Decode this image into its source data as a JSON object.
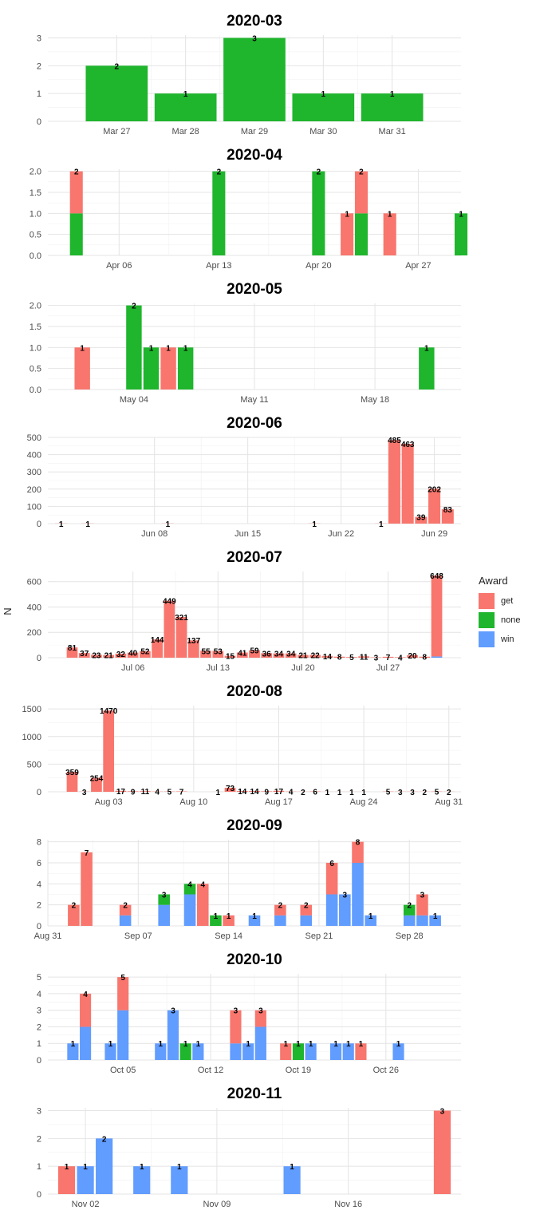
{
  "y_axis_label": "N",
  "legend": {
    "title": "Award",
    "items": [
      {
        "key": "get",
        "label": "get",
        "color": "#F8766D"
      },
      {
        "key": "none",
        "label": "none",
        "color": "#1FB52D"
      },
      {
        "key": "win",
        "label": "win",
        "color": "#619CFF"
      }
    ]
  },
  "chart_data": [
    {
      "type": "bar",
      "stacked": true,
      "title": "2020-03",
      "xlim": [
        "2020-03-26",
        "2020-04-01"
      ],
      "ylim": [
        0,
        3.1
      ],
      "yticks": [
        0,
        1,
        2,
        3
      ],
      "ytick_labels": [
        "0",
        "1",
        "2",
        "3"
      ],
      "xticks": [
        "2020-03-27",
        "2020-03-28",
        "2020-03-29",
        "2020-03-30",
        "2020-03-31"
      ],
      "xtick_labels": [
        "Mar 27",
        "Mar 28",
        "Mar 29",
        "Mar 30",
        "Mar 31"
      ],
      "bars": [
        {
          "date": "2020-03-27",
          "none": 2,
          "label": "2"
        },
        {
          "date": "2020-03-28",
          "none": 1,
          "label": "1"
        },
        {
          "date": "2020-03-29",
          "none": 3,
          "label": "3"
        },
        {
          "date": "2020-03-30",
          "none": 1,
          "label": "1"
        },
        {
          "date": "2020-03-31",
          "none": 1,
          "label": "1"
        }
      ]
    },
    {
      "type": "bar",
      "stacked": true,
      "title": "2020-04",
      "xlim": [
        "2020-04-01",
        "2020-04-30"
      ],
      "ylim": [
        0,
        2.05
      ],
      "yticks": [
        0,
        0.5,
        1,
        1.5,
        2
      ],
      "ytick_labels": [
        "0.0",
        "0.5",
        "1.0",
        "1.5",
        "2.0"
      ],
      "xticks": [
        "2020-04-06",
        "2020-04-13",
        "2020-04-20",
        "2020-04-27"
      ],
      "xtick_labels": [
        "Apr 06",
        "Apr 13",
        "Apr 20",
        "Apr 27"
      ],
      "bars": [
        {
          "date": "2020-04-03",
          "none": 1,
          "get": 1,
          "label": "2"
        },
        {
          "date": "2020-04-13",
          "none": 2,
          "label": "2"
        },
        {
          "date": "2020-04-20",
          "none": 2,
          "label": "2"
        },
        {
          "date": "2020-04-22",
          "get": 1,
          "label": "1"
        },
        {
          "date": "2020-04-23",
          "none": 1,
          "get": 1,
          "label": "2"
        },
        {
          "date": "2020-04-25",
          "get": 1,
          "label": "1"
        },
        {
          "date": "2020-04-30",
          "none": 1,
          "label": "1"
        }
      ]
    },
    {
      "type": "bar",
      "stacked": true,
      "title": "2020-05",
      "xlim": [
        "2020-04-29",
        "2020-05-23"
      ],
      "ylim": [
        0,
        2.05
      ],
      "yticks": [
        0,
        0.5,
        1,
        1.5,
        2
      ],
      "ytick_labels": [
        "0.0",
        "0.5",
        "1.0",
        "1.5",
        "2.0"
      ],
      "xticks": [
        "2020-05-04",
        "2020-05-11",
        "2020-05-18"
      ],
      "xtick_labels": [
        "May 04",
        "May 11",
        "May 18"
      ],
      "bars": [
        {
          "date": "2020-05-01",
          "get": 1,
          "label": "1"
        },
        {
          "date": "2020-05-04",
          "none": 2,
          "label": "2"
        },
        {
          "date": "2020-05-05",
          "none": 1,
          "label": "1"
        },
        {
          "date": "2020-05-06",
          "get": 1,
          "label": "1"
        },
        {
          "date": "2020-05-07",
          "none": 1,
          "label": "1"
        },
        {
          "date": "2020-05-21",
          "none": 1,
          "label": "1"
        }
      ]
    },
    {
      "type": "bar",
      "stacked": true,
      "title": "2020-06",
      "xlim": [
        "2020-05-31",
        "2020-07-01"
      ],
      "ylim": [
        0,
        500
      ],
      "yticks": [
        0,
        100,
        200,
        300,
        400,
        500
      ],
      "ytick_labels": [
        "0",
        "100",
        "200",
        "300",
        "400",
        "500"
      ],
      "xticks": [
        "2020-06-08",
        "2020-06-15",
        "2020-06-22",
        "2020-06-29"
      ],
      "xtick_labels": [
        "Jun 08",
        "Jun 15",
        "Jun 22",
        "Jun 29"
      ],
      "bars": [
        {
          "date": "2020-06-01",
          "get": 1,
          "label": "1"
        },
        {
          "date": "2020-06-03",
          "get": 1,
          "label": "1"
        },
        {
          "date": "2020-06-09",
          "get": 1,
          "label": "1"
        },
        {
          "date": "2020-06-20",
          "get": 1,
          "label": "1"
        },
        {
          "date": "2020-06-25",
          "get": 1,
          "label": "1"
        },
        {
          "date": "2020-06-26",
          "get": 485,
          "label": "485"
        },
        {
          "date": "2020-06-27",
          "get": 463,
          "label": "463"
        },
        {
          "date": "2020-06-28",
          "get": 39,
          "label": "39"
        },
        {
          "date": "2020-06-29",
          "get": 202,
          "label": "202"
        },
        {
          "date": "2020-06-30",
          "get": 83,
          "label": "83"
        }
      ]
    },
    {
      "type": "bar",
      "stacked": true,
      "title": "2020-07",
      "xlim": [
        "2020-06-29",
        "2020-08-02"
      ],
      "ylim": [
        0,
        680
      ],
      "yticks": [
        0,
        200,
        400,
        600
      ],
      "ytick_labels": [
        "0",
        "200",
        "400",
        "600"
      ],
      "xticks": [
        "2020-07-06",
        "2020-07-13",
        "2020-07-20",
        "2020-07-27"
      ],
      "xtick_labels": [
        "Jul 06",
        "Jul 13",
        "Jul 20",
        "Jul 27"
      ],
      "bars": [
        {
          "date": "2020-07-01",
          "get": 81,
          "label": "81"
        },
        {
          "date": "2020-07-02",
          "get": 37,
          "label": "37"
        },
        {
          "date": "2020-07-03",
          "get": 23,
          "label": "23"
        },
        {
          "date": "2020-07-04",
          "get": 21,
          "label": "21"
        },
        {
          "date": "2020-07-05",
          "get": 32,
          "label": "32"
        },
        {
          "date": "2020-07-06",
          "get": 40,
          "label": "40"
        },
        {
          "date": "2020-07-07",
          "get": 52,
          "label": "52"
        },
        {
          "date": "2020-07-08",
          "get": 144,
          "label": "144"
        },
        {
          "date": "2020-07-09",
          "get": 449,
          "label": "449"
        },
        {
          "date": "2020-07-10",
          "get": 321,
          "label": "321"
        },
        {
          "date": "2020-07-11",
          "get": 137,
          "label": "137"
        },
        {
          "date": "2020-07-12",
          "get": 55,
          "label": "55"
        },
        {
          "date": "2020-07-13",
          "get": 53,
          "label": "53"
        },
        {
          "date": "2020-07-14",
          "get": 15,
          "label": "15"
        },
        {
          "date": "2020-07-15",
          "get": 41,
          "label": "41"
        },
        {
          "date": "2020-07-16",
          "get": 59,
          "label": "59"
        },
        {
          "date": "2020-07-17",
          "get": 36,
          "label": "36"
        },
        {
          "date": "2020-07-18",
          "get": 34,
          "label": "34"
        },
        {
          "date": "2020-07-19",
          "get": 34,
          "label": "34"
        },
        {
          "date": "2020-07-20",
          "get": 21,
          "label": "21"
        },
        {
          "date": "2020-07-21",
          "get": 22,
          "label": "22"
        },
        {
          "date": "2020-07-22",
          "get": 14,
          "label": "14"
        },
        {
          "date": "2020-07-23",
          "get": 8,
          "label": "8"
        },
        {
          "date": "2020-07-24",
          "get": 5,
          "label": "5"
        },
        {
          "date": "2020-07-25",
          "get": 11,
          "label": "11"
        },
        {
          "date": "2020-07-26",
          "get": 3,
          "label": "3"
        },
        {
          "date": "2020-07-27",
          "get": 7,
          "label": "7"
        },
        {
          "date": "2020-07-28",
          "get": 4,
          "label": "4"
        },
        {
          "date": "2020-07-29",
          "get": 20,
          "label": "20"
        },
        {
          "date": "2020-07-30",
          "get": 8,
          "label": "8"
        },
        {
          "date": "2020-07-31",
          "win": 10,
          "get": 638,
          "label": "648"
        }
      ]
    },
    {
      "type": "bar",
      "stacked": true,
      "title": "2020-08",
      "xlim": [
        "2020-07-29",
        "2020-09-01"
      ],
      "ylim": [
        0,
        1560
      ],
      "yticks": [
        0,
        500,
        1000,
        1500
      ],
      "ytick_labels": [
        "0",
        "500",
        "1000",
        "1500"
      ],
      "xticks": [
        "2020-08-03",
        "2020-08-10",
        "2020-08-17",
        "2020-08-24",
        "2020-08-31"
      ],
      "xtick_labels": [
        "Aug 03",
        "Aug 10",
        "Aug 17",
        "Aug 24",
        "Aug 31"
      ],
      "bars": [
        {
          "date": "2020-07-31",
          "get": 359,
          "label": "359"
        },
        {
          "date": "2020-08-01",
          "get": 3,
          "label": "3"
        },
        {
          "date": "2020-08-02",
          "get": 254,
          "label": "254"
        },
        {
          "date": "2020-08-03",
          "get": 1470,
          "label": "1470"
        },
        {
          "date": "2020-08-04",
          "get": 17,
          "label": "17"
        },
        {
          "date": "2020-08-05",
          "get": 9,
          "label": "9"
        },
        {
          "date": "2020-08-06",
          "get": 11,
          "label": "11"
        },
        {
          "date": "2020-08-07",
          "get": 4,
          "label": "4"
        },
        {
          "date": "2020-08-08",
          "get": 5,
          "label": "5"
        },
        {
          "date": "2020-08-09",
          "get": 7,
          "label": "7"
        },
        {
          "date": "2020-08-12",
          "get": 1,
          "label": "1"
        },
        {
          "date": "2020-08-13",
          "get": 73,
          "label": "73"
        },
        {
          "date": "2020-08-14",
          "get": 14,
          "label": "14"
        },
        {
          "date": "2020-08-15",
          "get": 14,
          "label": "14"
        },
        {
          "date": "2020-08-16",
          "get": 9,
          "label": "9"
        },
        {
          "date": "2020-08-17",
          "get": 17,
          "label": "17"
        },
        {
          "date": "2020-08-18",
          "get": 4,
          "label": "4"
        },
        {
          "date": "2020-08-19",
          "get": 2,
          "label": "2"
        },
        {
          "date": "2020-08-20",
          "get": 6,
          "label": "6"
        },
        {
          "date": "2020-08-21",
          "get": 1,
          "label": "1"
        },
        {
          "date": "2020-08-22",
          "get": 1,
          "label": "1"
        },
        {
          "date": "2020-08-23",
          "get": 1,
          "label": "1"
        },
        {
          "date": "2020-08-24",
          "get": 1,
          "label": "1"
        },
        {
          "date": "2020-08-26",
          "get": 5,
          "label": "5"
        },
        {
          "date": "2020-08-27",
          "get": 3,
          "label": "3"
        },
        {
          "date": "2020-08-28",
          "get": 3,
          "label": "3"
        },
        {
          "date": "2020-08-29",
          "get": 2,
          "label": "2"
        },
        {
          "date": "2020-08-30",
          "get": 5,
          "label": "5"
        },
        {
          "date": "2020-08-31",
          "get": 2,
          "label": "2"
        }
      ]
    },
    {
      "type": "bar",
      "stacked": true,
      "title": "2020-09",
      "xlim": [
        "2020-08-31",
        "2020-10-02"
      ],
      "ylim": [
        0,
        8.2
      ],
      "yticks": [
        0,
        2,
        4,
        6,
        8
      ],
      "ytick_labels": [
        "0",
        "2",
        "4",
        "6",
        "8"
      ],
      "xticks": [
        "2020-08-31",
        "2020-09-07",
        "2020-09-14",
        "2020-09-21",
        "2020-09-28"
      ],
      "xtick_labels": [
        "Aug 31",
        "Sep 07",
        "Sep 14",
        "Sep 21",
        "Sep 28"
      ],
      "bars": [
        {
          "date": "2020-09-02",
          "get": 2,
          "label": "2"
        },
        {
          "date": "2020-09-03",
          "get": 7,
          "label": "7"
        },
        {
          "date": "2020-09-06",
          "win": 1,
          "get": 1,
          "label": "2"
        },
        {
          "date": "2020-09-09",
          "win": 2,
          "none": 1,
          "label": "3"
        },
        {
          "date": "2020-09-11",
          "win": 3,
          "none": 1,
          "label": "4"
        },
        {
          "date": "2020-09-12",
          "get": 4,
          "label": "4"
        },
        {
          "date": "2020-09-13",
          "none": 1,
          "label": "1"
        },
        {
          "date": "2020-09-14",
          "get": 1,
          "label": "1"
        },
        {
          "date": "2020-09-16",
          "win": 1,
          "label": "1"
        },
        {
          "date": "2020-09-18",
          "win": 1,
          "get": 1,
          "label": "2"
        },
        {
          "date": "2020-09-20",
          "win": 1,
          "get": 1,
          "label": "2"
        },
        {
          "date": "2020-09-22",
          "win": 3,
          "get": 3,
          "label": "6"
        },
        {
          "date": "2020-09-23",
          "win": 3,
          "label": "3"
        },
        {
          "date": "2020-09-24",
          "win": 6,
          "get": 2,
          "label": "8"
        },
        {
          "date": "2020-09-25",
          "win": 1,
          "label": "1"
        },
        {
          "date": "2020-09-28",
          "win": 1,
          "none": 1,
          "label": "2"
        },
        {
          "date": "2020-09-29",
          "win": 1,
          "get": 2,
          "label": "3"
        },
        {
          "date": "2020-09-30",
          "win": 1,
          "label": "1"
        }
      ]
    },
    {
      "type": "bar",
      "stacked": true,
      "title": "2020-10",
      "xlim": [
        "2020-09-29",
        "2020-11-01"
      ],
      "ylim": [
        0,
        5.2
      ],
      "yticks": [
        0,
        1,
        2,
        3,
        4,
        5
      ],
      "ytick_labels": [
        "0",
        "1",
        "2",
        "3",
        "4",
        "5"
      ],
      "xticks": [
        "2020-10-05",
        "2020-10-12",
        "2020-10-19",
        "2020-10-26"
      ],
      "xtick_labels": [
        "Oct 05",
        "Oct 12",
        "Oct 19",
        "Oct 26"
      ],
      "bars": [
        {
          "date": "2020-10-01",
          "win": 1,
          "label": "1"
        },
        {
          "date": "2020-10-02",
          "win": 2,
          "get": 2,
          "label": "4"
        },
        {
          "date": "2020-10-04",
          "win": 1,
          "label": "1"
        },
        {
          "date": "2020-10-05",
          "win": 3,
          "get": 2,
          "label": "5"
        },
        {
          "date": "2020-10-08",
          "win": 1,
          "label": "1"
        },
        {
          "date": "2020-10-09",
          "win": 3,
          "label": "3"
        },
        {
          "date": "2020-10-10",
          "none": 1,
          "label": "1"
        },
        {
          "date": "2020-10-11",
          "win": 1,
          "label": "1"
        },
        {
          "date": "2020-10-14",
          "win": 1,
          "get": 2,
          "label": "3"
        },
        {
          "date": "2020-10-15",
          "win": 1,
          "label": "1"
        },
        {
          "date": "2020-10-16",
          "win": 2,
          "get": 1,
          "label": "3"
        },
        {
          "date": "2020-10-18",
          "get": 1,
          "label": "1"
        },
        {
          "date": "2020-10-19",
          "none": 1,
          "label": "1"
        },
        {
          "date": "2020-10-20",
          "win": 1,
          "label": "1"
        },
        {
          "date": "2020-10-22",
          "win": 1,
          "label": "1"
        },
        {
          "date": "2020-10-23",
          "win": 1,
          "label": "1"
        },
        {
          "date": "2020-10-24",
          "get": 1,
          "label": "1"
        },
        {
          "date": "2020-10-27",
          "win": 1,
          "label": "1"
        }
      ]
    },
    {
      "type": "bar",
      "stacked": true,
      "title": "2020-11",
      "xlim": [
        "2020-10-31",
        "2020-11-22"
      ],
      "ylim": [
        0,
        3.1
      ],
      "yticks": [
        0,
        1,
        2,
        3
      ],
      "ytick_labels": [
        "0",
        "1",
        "2",
        "3"
      ],
      "xticks": [
        "2020-11-02",
        "2020-11-09",
        "2020-11-16"
      ],
      "xtick_labels": [
        "Nov 02",
        "Nov 09",
        "Nov 16"
      ],
      "bars": [
        {
          "date": "2020-11-01",
          "get": 1,
          "label": "1"
        },
        {
          "date": "2020-11-02",
          "win": 1,
          "label": "1"
        },
        {
          "date": "2020-11-03",
          "win": 2,
          "label": "2"
        },
        {
          "date": "2020-11-05",
          "win": 1,
          "label": "1"
        },
        {
          "date": "2020-11-07",
          "win": 1,
          "label": "1"
        },
        {
          "date": "2020-11-13",
          "win": 1,
          "label": "1"
        },
        {
          "date": "2020-11-21",
          "get": 3,
          "label": "3"
        }
      ]
    }
  ]
}
